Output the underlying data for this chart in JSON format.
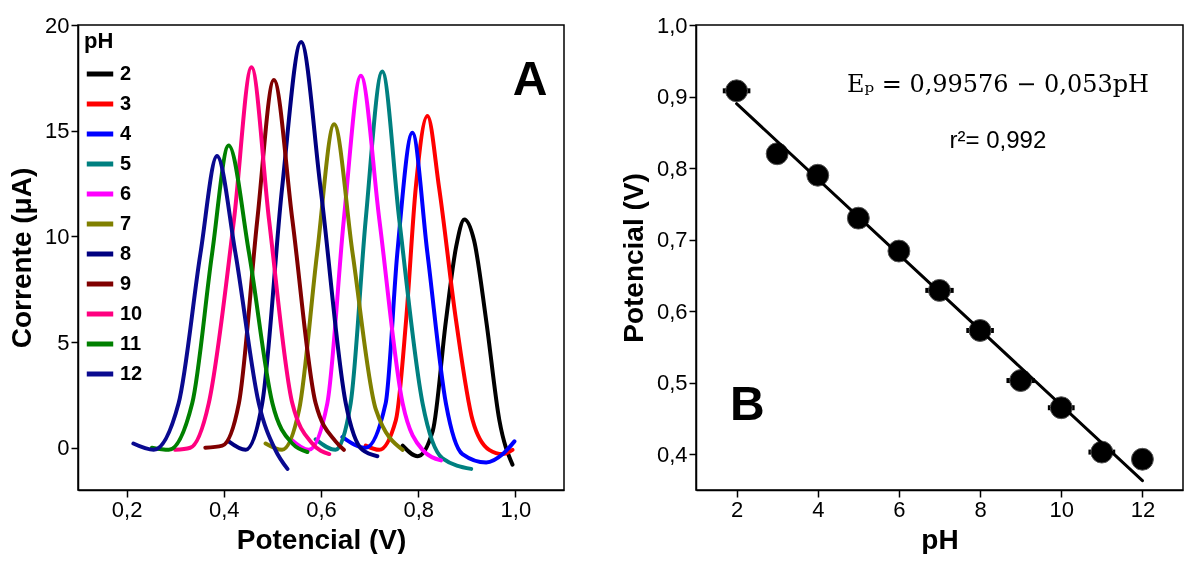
{
  "chart_data": [
    {
      "type": "line",
      "xlabel": "Potencial (V)",
      "ylabel": "Corrente (μA)",
      "legend_title": "pH",
      "legend": "top left",
      "grid": false,
      "line_style": "solid",
      "annotations": [
        "A"
      ],
      "xlim": [
        0.1,
        1.1
      ],
      "xticks": [
        {
          "value": 0.2,
          "label": "0,2"
        },
        {
          "value": 0.4,
          "label": "0,4"
        },
        {
          "value": 0.6,
          "label": "0,6"
        },
        {
          "value": 0.8,
          "label": "0,8"
        },
        {
          "value": 1.0,
          "label": "1,0"
        }
      ],
      "ylim": [
        -2,
        20
      ],
      "yticks": [
        0,
        5,
        10,
        15,
        20
      ],
      "series": [
        {
          "name": "2",
          "color": "#000000",
          "x": [
            0.768,
            0.799,
            0.83,
            0.857,
            0.878,
            0.895,
            0.915,
            0.94,
            0.967,
            0.994
          ],
          "values": [
            0.1,
            -0.4,
            0.8,
            6.0,
            9.5,
            10.8,
            9.8,
            6.0,
            1.3,
            -0.8
          ]
        },
        {
          "name": "3",
          "color": "#ff0000",
          "x": [
            0.692,
            0.72,
            0.754,
            0.775,
            0.795,
            0.819,
            0.843,
            0.878,
            0.912,
            0.946,
            0.974,
            0.994
          ],
          "values": [
            0.1,
            -0.1,
            1.3,
            6.0,
            12.3,
            15.7,
            12.3,
            6.0,
            1.3,
            -0.1,
            -0.3,
            -0.1
          ]
        },
        {
          "name": "4",
          "color": "#0000ff",
          "x": [
            0.644,
            0.692,
            0.733,
            0.757,
            0.788,
            0.819,
            0.857,
            0.891,
            0.94,
            0.974,
            0.998
          ],
          "values": [
            0.5,
            0.0,
            2.1,
            9.2,
            14.9,
            9.2,
            2.1,
            -0.3,
            -0.7,
            -0.3,
            0.3
          ]
        },
        {
          "name": "5",
          "color": "#008080",
          "x": [
            0.589,
            0.63,
            0.661,
            0.692,
            0.726,
            0.761,
            0.809,
            0.85,
            0.909
          ],
          "values": [
            0.4,
            -0.1,
            2.1,
            10.8,
            17.8,
            10.8,
            2.1,
            -0.5,
            -1.0
          ]
        },
        {
          "name": "6",
          "color": "#ff00ff",
          "x": [
            0.538,
            0.575,
            0.613,
            0.647,
            0.682,
            0.72,
            0.768,
            0.809,
            0.847
          ],
          "values": [
            0.4,
            -0.1,
            2.1,
            10.8,
            17.6,
            10.8,
            2.1,
            -0.1,
            -0.6
          ]
        },
        {
          "name": "7",
          "color": "#808000",
          "x": [
            0.486,
            0.52,
            0.555,
            0.592,
            0.627,
            0.665,
            0.713,
            0.768
          ],
          "values": [
            0.2,
            -0.1,
            1.8,
            9.2,
            15.3,
            9.2,
            1.8,
            -0.1
          ]
        },
        {
          "name": "8",
          "color": "#000080",
          "x": [
            0.41,
            0.445,
            0.479,
            0.52,
            0.559,
            0.599,
            0.651,
            0.685,
            0.716
          ],
          "values": [
            0.3,
            -0.1,
            2.1,
            12.3,
            19.2,
            12.3,
            2.1,
            -0.1,
            -0.4
          ]
        },
        {
          "name": "9",
          "color": "#800000",
          "x": [
            0.362,
            0.397,
            0.431,
            0.469,
            0.503,
            0.541,
            0.589,
            0.63,
            0.647
          ],
          "values": [
            0.0,
            0.1,
            2.1,
            10.8,
            17.4,
            10.8,
            2.1,
            0.3,
            -0.1
          ]
        },
        {
          "name": "10",
          "color": "#ff0080",
          "x": [
            0.3,
            0.331,
            0.369,
            0.421,
            0.457,
            0.493,
            0.541,
            0.582,
            0.617
          ],
          "values": [
            -0.1,
            0.0,
            2.1,
            10.8,
            18.0,
            10.8,
            2.1,
            0.2,
            -0.3
          ]
        },
        {
          "name": "11",
          "color": "#008000",
          "x": [
            0.252,
            0.287,
            0.335,
            0.376,
            0.41,
            0.452,
            0.5,
            0.541,
            0.572
          ],
          "values": [
            0.0,
            -0.1,
            2.1,
            9.2,
            14.3,
            9.2,
            2.1,
            0.2,
            -0.2
          ]
        },
        {
          "name": "12",
          "color": "#0a0a90",
          "x": [
            0.214,
            0.256,
            0.307,
            0.352,
            0.386,
            0.424,
            0.472,
            0.506,
            0.531
          ],
          "values": [
            0.2,
            -0.1,
            2.1,
            9.2,
            13.8,
            9.2,
            2.1,
            -0.1,
            -1.0
          ]
        }
      ]
    },
    {
      "type": "scatter",
      "xlabel": "pH",
      "ylabel": "Potencial (V)",
      "grid": false,
      "marker": "circle",
      "annotations": [
        "Eₚ = 0,99576 − 0,053pH",
        "r²= 0,992",
        "B"
      ],
      "xlim": [
        1,
        13
      ],
      "xticks": [
        2,
        4,
        6,
        8,
        10,
        12
      ],
      "ylim": [
        0.35,
        1.0
      ],
      "yticks": [
        {
          "value": 0.4,
          "label": "0,4"
        },
        {
          "value": 0.5,
          "label": "0,5"
        },
        {
          "value": 0.6,
          "label": "0,6"
        },
        {
          "value": 0.7,
          "label": "0,7"
        },
        {
          "value": 0.8,
          "label": "0,8"
        },
        {
          "value": 0.9,
          "label": "0,9"
        },
        {
          "value": 1.0,
          "label": "1,0"
        }
      ],
      "series": [
        {
          "color": "#000000",
          "x": [
            2,
            3,
            4,
            5,
            6,
            7,
            8,
            9,
            10,
            11,
            12
          ],
          "values": [
            0.908,
            0.82,
            0.79,
            0.73,
            0.684,
            0.629,
            0.573,
            0.503,
            0.465,
            0.403,
            0.393
          ],
          "xerrors": [
            0.34,
            null,
            null,
            null,
            null,
            0.35,
            0.34,
            0.35,
            0.33,
            0.33,
            null
          ]
        },
        {
          "type": "line",
          "marker": "none",
          "color": "#000000",
          "x": [
            2,
            12
          ],
          "values": [
            0.89,
            0.363
          ]
        }
      ]
    }
  ]
}
